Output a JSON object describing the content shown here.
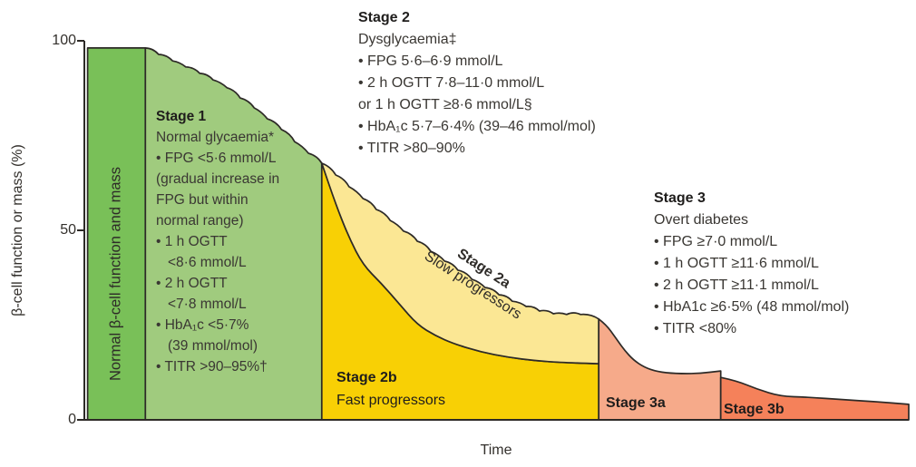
{
  "chart_data": {
    "type": "area",
    "title": "",
    "xlabel": "Time",
    "ylabel": "β-cell function or mass (%)",
    "ylim": [
      0,
      100
    ],
    "yticks": [
      100,
      50,
      0
    ],
    "x_axis_note": "unlabelled relative time scale 0–100",
    "grid": false,
    "outline_color": "#2d2a27",
    "regions": [
      {
        "id": "normal-mass",
        "label": "Normal β-cell function and mass",
        "fill": "#79C058",
        "edge": "flat",
        "x0": 0.4,
        "x1": 7.4,
        "top": [
          [
            0.4,
            98.1
          ],
          [
            7.4,
            98.1
          ]
        ]
      },
      {
        "id": "stage1",
        "label": "Stage 1 – Normal glycaemia",
        "fill": "#A0CB7E",
        "edge": "scallop",
        "x0": 7.4,
        "x1": 28.8,
        "top": [
          [
            7.4,
            98.1
          ],
          [
            9.0,
            96.4
          ],
          [
            10.7,
            94.7
          ],
          [
            12.3,
            93.1
          ],
          [
            14.0,
            91.4
          ],
          [
            15.6,
            89.7
          ],
          [
            17.3,
            87.6
          ],
          [
            18.9,
            84.9
          ],
          [
            20.6,
            82.3
          ],
          [
            22.2,
            79.4
          ],
          [
            23.9,
            76.6
          ],
          [
            25.5,
            73.4
          ],
          [
            27.2,
            70.3
          ],
          [
            28.8,
            67.7
          ]
        ]
      },
      {
        "id": "stage2b",
        "label": "Stage 2b – Fast progressors",
        "fill": "#F8D005",
        "edge": "smooth",
        "x0": 28.8,
        "x1": 62.4,
        "top": [
          [
            28.8,
            67.7
          ],
          [
            30.5,
            56.9
          ],
          [
            32.1,
            48.1
          ],
          [
            33.8,
            40.9
          ],
          [
            36.0,
            36.1
          ],
          [
            38.2,
            30.6
          ],
          [
            40.4,
            25.1
          ],
          [
            42.6,
            22.2
          ],
          [
            44.8,
            20.1
          ],
          [
            48.1,
            17.9
          ],
          [
            51.4,
            16.5
          ],
          [
            54.7,
            15.6
          ],
          [
            58.0,
            15.1
          ],
          [
            62.4,
            14.8
          ]
        ]
      },
      {
        "id": "stage2a",
        "label": "Stage 2a – Slow progressors",
        "fill": "#FBE794",
        "edge": "scallop",
        "bottom_ref": "stage2b",
        "x0": 28.8,
        "x1": 62.4,
        "top": [
          [
            28.8,
            67.7
          ],
          [
            30.5,
            64.6
          ],
          [
            32.1,
            61.5
          ],
          [
            33.8,
            58.4
          ],
          [
            35.4,
            55.5
          ],
          [
            37.1,
            52.6
          ],
          [
            38.7,
            49.8
          ],
          [
            40.4,
            47.1
          ],
          [
            42.0,
            44.5
          ],
          [
            43.7,
            41.9
          ],
          [
            45.3,
            39.5
          ],
          [
            47.0,
            37.1
          ],
          [
            48.6,
            34.9
          ],
          [
            50.3,
            33.0
          ],
          [
            51.9,
            31.3
          ],
          [
            53.6,
            29.9
          ],
          [
            55.2,
            28.7
          ],
          [
            56.9,
            28.0
          ],
          [
            58.5,
            27.8
          ],
          [
            60.2,
            27.8
          ],
          [
            62.4,
            26.6
          ]
        ]
      },
      {
        "id": "stage3a",
        "label": "Stage 3a",
        "fill": "#F6AA8A",
        "edge": "smooth",
        "x0": 62.4,
        "x1": 77.2,
        "top": [
          [
            62.4,
            26.6
          ],
          [
            63.3,
            25.1
          ],
          [
            64.4,
            21.8
          ],
          [
            65.5,
            18.4
          ],
          [
            66.6,
            15.8
          ],
          [
            67.9,
            13.9
          ],
          [
            69.5,
            12.7
          ],
          [
            71.7,
            12.2
          ],
          [
            74.5,
            12.2
          ],
          [
            77.2,
            12.9
          ]
        ]
      },
      {
        "id": "stage3b",
        "label": "Stage 3b",
        "fill": "#F5815A",
        "edge": "smooth",
        "x0": 77.2,
        "x1": 100,
        "top": [
          [
            77.2,
            11.2
          ],
          [
            79.1,
            10.3
          ],
          [
            81.6,
            8.1
          ],
          [
            84.4,
            6.2
          ],
          [
            87.7,
            6.0
          ],
          [
            92.1,
            5.3
          ],
          [
            95.9,
            4.8
          ],
          [
            100,
            4.1
          ]
        ]
      }
    ]
  },
  "annotations": {
    "normal_column": {
      "label": "Normal β-cell function and mass"
    },
    "stage1": {
      "title": "Stage 1",
      "lines": [
        {
          "text": "Normal glycaemia*",
          "indent": false
        },
        {
          "text": "• FPG <5·6 mmol/L",
          "indent": false
        },
        {
          "text": "(gradual increase in",
          "indent": false
        },
        {
          "text": "FPG but within",
          "indent": false
        },
        {
          "text": "normal range)",
          "indent": false
        },
        {
          "text": "• 1 h OGTT",
          "indent": false
        },
        {
          "text": "<8·6 mmol/L",
          "indent": true
        },
        {
          "text": "• 2 h OGTT",
          "indent": false
        },
        {
          "text": "<7·8 mmol/L",
          "indent": true
        },
        {
          "text": "• HbA₁c <5·7%",
          "indent": false
        },
        {
          "text": "(39 mmol/mol)",
          "indent": true
        },
        {
          "text": "• TITR >90–95%†",
          "indent": false
        }
      ]
    },
    "stage2": {
      "title": "Stage 2",
      "lines": [
        {
          "text": "Dysglycaemia‡",
          "indent": false
        },
        {
          "text": "• FPG 5·6–6·9 mmol/L",
          "indent": false
        },
        {
          "text": "• 2 h OGTT 7·8–11·0 mmol/L",
          "indent": false
        },
        {
          "text": "or 1 h OGTT ≥8·6 mmol/L§",
          "indent": false
        },
        {
          "text": "• HbA₁c 5·7–6·4% (39–46 mmol/mol)",
          "indent": false
        },
        {
          "text": "• TITR >80–90%",
          "indent": false
        }
      ]
    },
    "stage3": {
      "title": "Stage 3",
      "lines": [
        {
          "text": "Overt diabetes",
          "indent": false
        },
        {
          "text": "• FPG ≥7·0 mmol/L",
          "indent": false
        },
        {
          "text": "• 1 h OGTT ≥11·6 mmol/L",
          "indent": false
        },
        {
          "text": "• 2 h OGTT ≥11·1 mmol/L",
          "indent": false
        },
        {
          "text": "• HbA1c ≥6·5% (48 mmol/mol)",
          "indent": false
        },
        {
          "text": "• TITR <80%",
          "indent": false
        }
      ]
    },
    "stage2a": {
      "title": "Stage 2a",
      "subtitle": "Slow progressors"
    },
    "stage2b": {
      "title": "Stage 2b",
      "subtitle": "Fast progressors"
    },
    "stage3a": {
      "title": "Stage 3a"
    },
    "stage3b": {
      "title": "Stage 3b"
    }
  },
  "colors": {
    "normal_column": "#79C058",
    "stage1": "#A0CB7E",
    "stage2b": "#F8D005",
    "stage2a": "#FBE794",
    "stage3a": "#F6AA8A",
    "stage3b": "#F5815A",
    "outline": "#2d2a27",
    "body_text": "#3a3733",
    "heading_text": "#1f1d1c"
  }
}
